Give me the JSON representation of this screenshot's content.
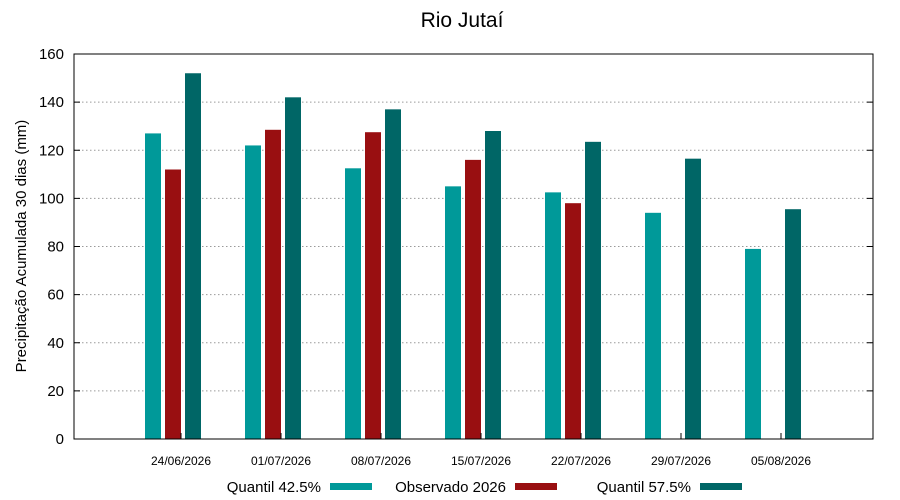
{
  "chart_data": {
    "type": "bar",
    "title": "Rio Jutaí",
    "xlabel": "",
    "ylabel": "Precipitação Acumulada 30 dias (mm)",
    "ylim": [
      0,
      160
    ],
    "yticks": [
      0,
      20,
      40,
      60,
      80,
      100,
      120,
      140,
      160
    ],
    "grid": true,
    "legend_position": "bottom",
    "categories": [
      "24/06/2026",
      "01/07/2026",
      "08/07/2026",
      "15/07/2026",
      "22/07/2026",
      "29/07/2026",
      "05/08/2026"
    ],
    "series": [
      {
        "name": "Quantil 42.5%",
        "color": "#009999",
        "values": [
          127,
          122,
          112.5,
          105,
          102.5,
          94,
          79
        ]
      },
      {
        "name": "Observado 2026",
        "color": "#990F11",
        "values": [
          112,
          128.5,
          127.5,
          116,
          98,
          null,
          null
        ]
      },
      {
        "name": "Quantil 57.5%",
        "color": "#006666",
        "values": [
          152,
          142,
          137,
          128,
          123.5,
          116.5,
          95.5
        ]
      }
    ]
  }
}
